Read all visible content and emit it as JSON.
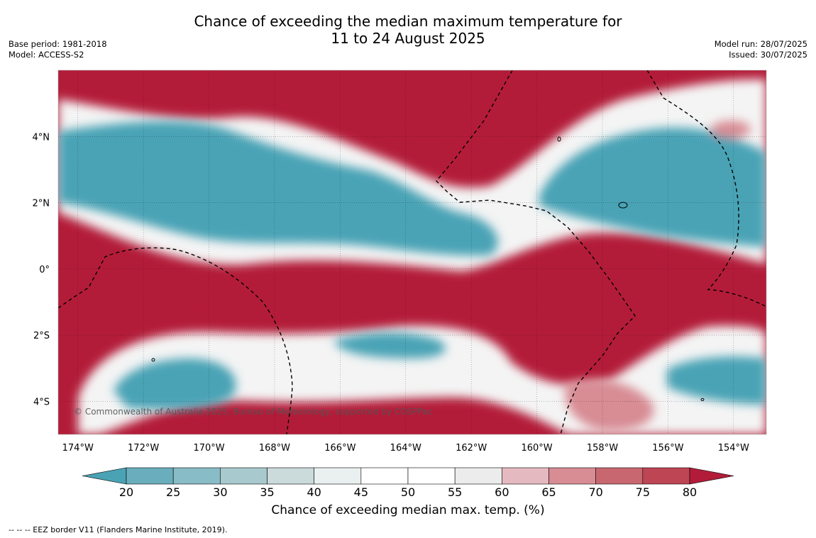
{
  "title": {
    "line1": "Chance of exceeding the median maximum temperature for",
    "line2": "11 to 24 August 2025"
  },
  "meta_left": {
    "base_period": "Base period: 1981-2018",
    "model": "Model: ACCESS-S2"
  },
  "meta_right": {
    "model_run": "Model run: 28/07/2025",
    "issued": "Issued: 30/07/2025"
  },
  "map": {
    "copyright": "© Commonwealth of Australia 2025, Bureau of Meteorology, supported by COSPPac",
    "lon_ticks": [
      "174°W",
      "172°W",
      "170°W",
      "168°W",
      "166°W",
      "164°W",
      "162°W",
      "160°W",
      "158°W",
      "156°W",
      "154°W"
    ],
    "lat_ticks": [
      "4°N",
      "2°N",
      "0°",
      "2°S",
      "4°S"
    ],
    "lon_range": [
      -174.6,
      -153.0
    ],
    "lat_range": [
      -5.0,
      6.0
    ]
  },
  "colorbar": {
    "label": "Chance of exceeding median max. temp. (%)",
    "ticks": [
      "20",
      "25",
      "30",
      "35",
      "40",
      "45",
      "50",
      "55",
      "60",
      "65",
      "70",
      "75",
      "80"
    ],
    "colors": [
      "#4aa3b5",
      "#6aaebd",
      "#88bcc6",
      "#a8c9cd",
      "#cbdadb",
      "#eaf0f0",
      "#ffffff",
      "#ffffff",
      "#ececec",
      "#e4b9bf",
      "#d88c94",
      "#c96770",
      "#be4554",
      "#b31c39"
    ]
  },
  "footer": {
    "eez_note": "--  --  -- EEZ border V11 (Flanders Marine Institute, 2019)."
  }
}
